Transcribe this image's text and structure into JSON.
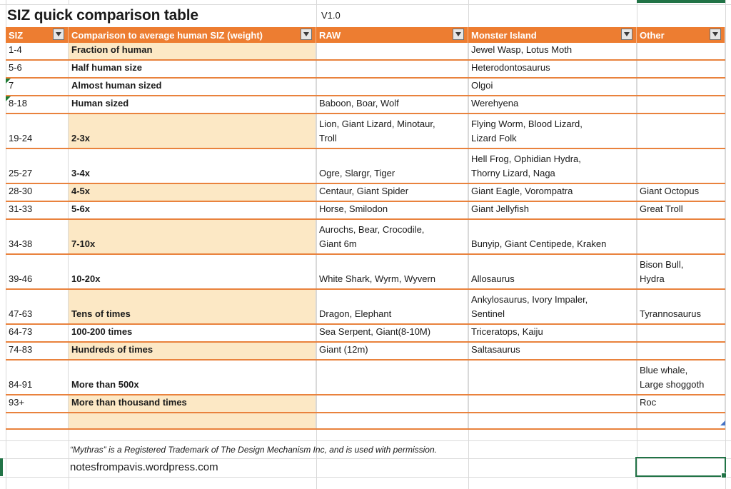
{
  "title": "SIZ quick comparison table",
  "version": "V1.0",
  "columns": [
    {
      "key": "siz",
      "label": "SIZ"
    },
    {
      "key": "comparison",
      "label": "Comparison to average human SIZ (weight)"
    },
    {
      "key": "raw",
      "label": "RAW"
    },
    {
      "key": "monster_island",
      "label": "Monster Island"
    },
    {
      "key": "other",
      "label": "Other"
    }
  ],
  "rows": [
    {
      "siz": "1-4",
      "comparison": "Fraction of human",
      "raw": "",
      "monster_island": "Jewel Wasp, Lotus Moth",
      "other": "",
      "banded": true
    },
    {
      "siz": "5-6",
      "comparison": "Half human size",
      "raw": "",
      "monster_island": "Heterodontosaurus",
      "other": ""
    },
    {
      "siz": "7",
      "comparison": "Almost human sized",
      "raw": "",
      "monster_island": "Olgoi",
      "other": "",
      "error_indicator": true
    },
    {
      "siz": "8-18",
      "comparison": "Human sized",
      "raw": "Baboon, Boar, Wolf",
      "monster_island": "Werehyena",
      "other": "",
      "error_indicator": true
    },
    {
      "siz": "19-24",
      "comparison": "2-3x",
      "raw": "Lion, Giant Lizard, Minotaur,\nTroll",
      "monster_island": "Flying Worm, Blood Lizard,\nLizard Folk",
      "other": "",
      "banded": true,
      "tall": true
    },
    {
      "siz": "25-27",
      "comparison": "3-4x",
      "raw": "Ogre, Slargr, Tiger",
      "monster_island": "Hell Frog, Ophidian Hydra,\nThorny Lizard, Naga",
      "other": "",
      "tall": true
    },
    {
      "siz": "28-30",
      "comparison": "4-5x",
      "raw": "Centaur, Giant Spider",
      "monster_island": "Giant Eagle, Vorompatra",
      "other": "Giant Octopus",
      "banded": true
    },
    {
      "siz": "31-33",
      "comparison": "5-6x",
      "raw": "Horse, Smilodon",
      "monster_island": "Giant Jellyfish",
      "other": "Great Troll"
    },
    {
      "siz": "34-38",
      "comparison": "7-10x",
      "raw": "Aurochs, Bear, Crocodile,\nGiant 6m",
      "monster_island": "Bunyip, Giant Centipede, Kraken",
      "other": "",
      "banded": true,
      "tall": true
    },
    {
      "siz": "39-46",
      "comparison": "10-20x",
      "raw": "White Shark, Wyrm, Wyvern",
      "monster_island": "Allosaurus",
      "other": "Bison Bull,\nHydra",
      "tall": true
    },
    {
      "siz": "47-63",
      "comparison": "Tens of times",
      "raw": "Dragon, Elephant",
      "monster_island": "Ankylosaurus, Ivory Impaler,\nSentinel",
      "other": "Tyrannosaurus",
      "banded": true,
      "tall": true
    },
    {
      "siz": "64-73",
      "comparison": "100-200 times",
      "raw": "Sea Serpent, Giant(8-10M)",
      "monster_island": "Triceratops, Kaiju",
      "other": ""
    },
    {
      "siz": "74-83",
      "comparison": "Hundreds of times",
      "raw": "Giant (12m)",
      "monster_island": "Saltasaurus",
      "other": "",
      "banded": true
    },
    {
      "siz": "84-91",
      "comparison": "More than 500x",
      "raw": "",
      "monster_island": "",
      "other": "Blue whale,\nLarge shoggoth",
      "tall": true
    },
    {
      "siz": "93+",
      "comparison": "More than thousand times",
      "raw": "",
      "monster_island": "",
      "other": "Roc",
      "banded": true
    },
    {
      "siz": "",
      "comparison": "",
      "raw": "",
      "monster_island": "",
      "other": "",
      "banded": true,
      "last": true
    }
  ],
  "footer": {
    "trademark": "“Mythras” is a Registered Trademark of The Design Mechanism Inc, and is used with permission.",
    "website": "notesfrompavis.wordpress.com"
  },
  "colors": {
    "header_orange": "#ED7D31",
    "row_border_orange": "#E9823D",
    "band_cream": "#FCE8C5",
    "selection_green": "#217346",
    "error_indicator_green": "#1E7B34",
    "table_corner_blue": "#4472C4",
    "gridline_gray": "#D9D9D9"
  }
}
